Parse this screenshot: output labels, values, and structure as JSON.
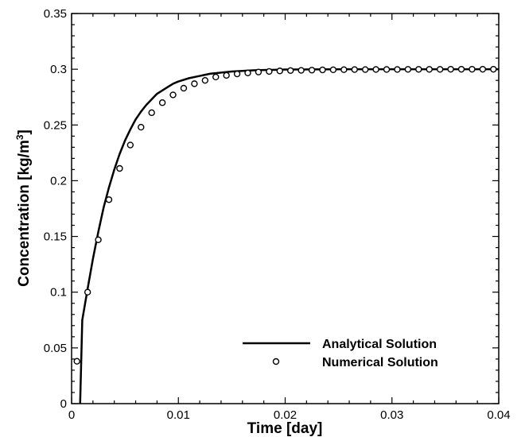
{
  "chart_data": {
    "type": "line",
    "title": "",
    "xlabel": "Time [day]",
    "ylabel_main": "Concentration [kg/m",
    "ylabel_sup": "3",
    "ylabel_close": "]",
    "xlim": [
      0,
      0.04
    ],
    "ylim": [
      0,
      0.35
    ],
    "x_ticks": [
      0,
      0.01,
      0.02,
      0.03,
      0.04
    ],
    "x_tick_labels": [
      "0",
      "0.01",
      "0.02",
      "0.03",
      "0.04"
    ],
    "y_ticks": [
      0,
      0.05,
      0.1,
      0.15,
      0.2,
      0.25,
      0.3,
      0.35
    ],
    "y_tick_labels": [
      "0",
      "0.05",
      "0.1",
      "0.15",
      "0.2",
      "0.25",
      "0.3",
      "0.35"
    ],
    "grid": false,
    "legend_position": "bottom-right",
    "series": [
      {
        "name": "Analytical Solution",
        "style": "line",
        "color": "#000000",
        "x": [
          0.0008,
          0.001,
          0.0015,
          0.002,
          0.0025,
          0.003,
          0.0035,
          0.004,
          0.0045,
          0.005,
          0.0055,
          0.006,
          0.0065,
          0.007,
          0.0075,
          0.008,
          0.0085,
          0.009,
          0.0095,
          0.01,
          0.011,
          0.012,
          0.013,
          0.014,
          0.015,
          0.016,
          0.017,
          0.018,
          0.019,
          0.02,
          0.022,
          0.024,
          0.026,
          0.028,
          0.03,
          0.032,
          0.034,
          0.036,
          0.038,
          0.04
        ],
        "y": [
          0.0,
          0.075,
          0.103,
          0.13,
          0.154,
          0.176,
          0.194,
          0.21,
          0.224,
          0.236,
          0.246,
          0.255,
          0.262,
          0.268,
          0.273,
          0.278,
          0.281,
          0.284,
          0.287,
          0.289,
          0.292,
          0.294,
          0.296,
          0.297,
          0.298,
          0.2985,
          0.299,
          0.2993,
          0.2995,
          0.2997,
          0.2998,
          0.2999,
          0.3,
          0.3,
          0.3,
          0.3,
          0.3,
          0.3,
          0.3,
          0.3
        ]
      },
      {
        "name": "Numerical Solution",
        "style": "marker",
        "marker": "open-circle",
        "color": "#000000",
        "x": [
          0.0005,
          0.0015,
          0.0025,
          0.0035,
          0.0045,
          0.0055,
          0.0065,
          0.0075,
          0.0085,
          0.0095,
          0.0105,
          0.0115,
          0.0125,
          0.0135,
          0.0145,
          0.0155,
          0.0165,
          0.0175,
          0.0185,
          0.0195,
          0.0205,
          0.0215,
          0.0225,
          0.0235,
          0.0245,
          0.0255,
          0.0265,
          0.0275,
          0.0285,
          0.0295,
          0.0305,
          0.0315,
          0.0325,
          0.0335,
          0.0345,
          0.0355,
          0.0365,
          0.0375,
          0.0385,
          0.0395
        ],
        "y": [
          0.038,
          0.1,
          0.147,
          0.183,
          0.211,
          0.232,
          0.248,
          0.261,
          0.27,
          0.277,
          0.283,
          0.287,
          0.29,
          0.293,
          0.2945,
          0.2958,
          0.2967,
          0.2975,
          0.298,
          0.2985,
          0.2988,
          0.299,
          0.2992,
          0.2994,
          0.2995,
          0.2996,
          0.2997,
          0.2997,
          0.2998,
          0.2998,
          0.2998,
          0.2999,
          0.2999,
          0.2999,
          0.2999,
          0.3,
          0.3,
          0.3,
          0.3,
          0.3
        ]
      }
    ]
  }
}
